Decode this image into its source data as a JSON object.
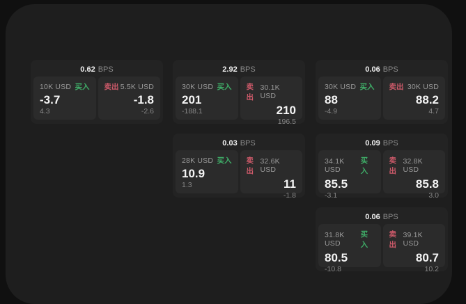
{
  "labels": {
    "bps_unit": "BPS",
    "buy": "买入",
    "sell": "卖出"
  },
  "colors": {
    "buy_accent": "#3fae68",
    "sell_accent": "#ce5a6a",
    "window_bg": "#1e1e1e",
    "card_bg": "#232323",
    "panel_bg": "#2b2b2b"
  },
  "cards": [
    {
      "bps": "0.62",
      "buy": {
        "amount": "10K USD",
        "main": "-3.7",
        "sub": "4.3"
      },
      "sell": {
        "amount": "5.5K USD",
        "main": "-1.8",
        "sub": "-2.6"
      }
    },
    {
      "bps": "2.92",
      "buy": {
        "amount": "30K USD",
        "main": "201",
        "sub": "-188.1"
      },
      "sell": {
        "amount": "30.1K USD",
        "main": "210",
        "sub": "196.5"
      }
    },
    {
      "bps": "0.06",
      "buy": {
        "amount": "30K USD",
        "main": "88",
        "sub": "-4.9"
      },
      "sell": {
        "amount": "30K USD",
        "main": "88.2",
        "sub": "4.7"
      }
    },
    {
      "bps": "0.03",
      "buy": {
        "amount": "28K USD",
        "main": "10.9",
        "sub": "1.3"
      },
      "sell": {
        "amount": "32.6K USD",
        "main": "11",
        "sub": "-1.8"
      }
    },
    {
      "bps": "0.09",
      "buy": {
        "amount": "34.1K USD",
        "main": "85.5",
        "sub": "-3.1"
      },
      "sell": {
        "amount": "32.8K USD",
        "main": "85.8",
        "sub": "3.0"
      }
    },
    {
      "bps": "0.06",
      "buy": {
        "amount": "31.8K USD",
        "main": "80.5",
        "sub": "-10.8"
      },
      "sell": {
        "amount": "39.1K USD",
        "main": "80.7",
        "sub": "10.2"
      }
    }
  ]
}
